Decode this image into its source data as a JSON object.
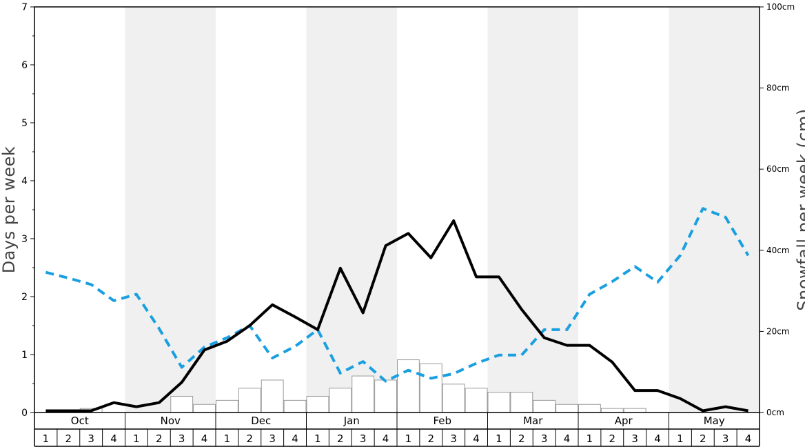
{
  "chart_data": {
    "type": "line",
    "ylabel_left": "Days per week",
    "ylabel_right": "Snowfall per week (cm)",
    "ylim_left": [
      0,
      7
    ],
    "ylim_right": [
      0,
      100
    ],
    "y_ticks_left": [
      "0",
      "1",
      "2",
      "3",
      "4",
      "5",
      "6",
      "7"
    ],
    "y_ticks_right": [
      "0cm",
      "20cm",
      "40cm",
      "60cm",
      "80cm",
      "100cm"
    ],
    "months": [
      "Oct",
      "Nov",
      "Dec",
      "Jan",
      "Feb",
      "Mar",
      "Apr",
      "May"
    ],
    "weeks": [
      "1",
      "2",
      "3",
      "4"
    ],
    "grid": false,
    "shaded_columns": "alternate months",
    "series": [
      {
        "kind": "bar",
        "axis": "right",
        "values": [
          0,
          0,
          1,
          0,
          0,
          0,
          4,
          2,
          3,
          6,
          8,
          3,
          4,
          6,
          9,
          8,
          13,
          12,
          7,
          6,
          5,
          5,
          3,
          2,
          2,
          1,
          1,
          0,
          0,
          0,
          0,
          0
        ]
      },
      {
        "kind": "line",
        "axis": "left",
        "style": "solid",
        "color": "#000000",
        "values": [
          0.03,
          0.03,
          0.03,
          0.17,
          0.1,
          0.17,
          0.52,
          1.08,
          1.23,
          1.5,
          1.86,
          1.65,
          1.43,
          2.49,
          1.72,
          2.88,
          3.09,
          2.67,
          3.31,
          2.34,
          2.34,
          1.78,
          1.29,
          1.16,
          1.16,
          0.87,
          0.38,
          0.38,
          0.24,
          0.03,
          0.1,
          0.03
        ]
      },
      {
        "kind": "line",
        "axis": "left",
        "style": "dashed",
        "color": "#1a9fe0",
        "values": [
          2.42,
          2.32,
          2.21,
          1.93,
          2.04,
          1.45,
          0.78,
          1.13,
          1.29,
          1.5,
          0.94,
          1.14,
          1.43,
          0.68,
          0.88,
          0.54,
          0.73,
          0.59,
          0.67,
          0.85,
          0.99,
          0.99,
          1.43,
          1.43,
          2.04,
          2.26,
          2.52,
          2.25,
          2.71,
          3.52,
          3.37,
          2.71
        ]
      }
    ]
  }
}
